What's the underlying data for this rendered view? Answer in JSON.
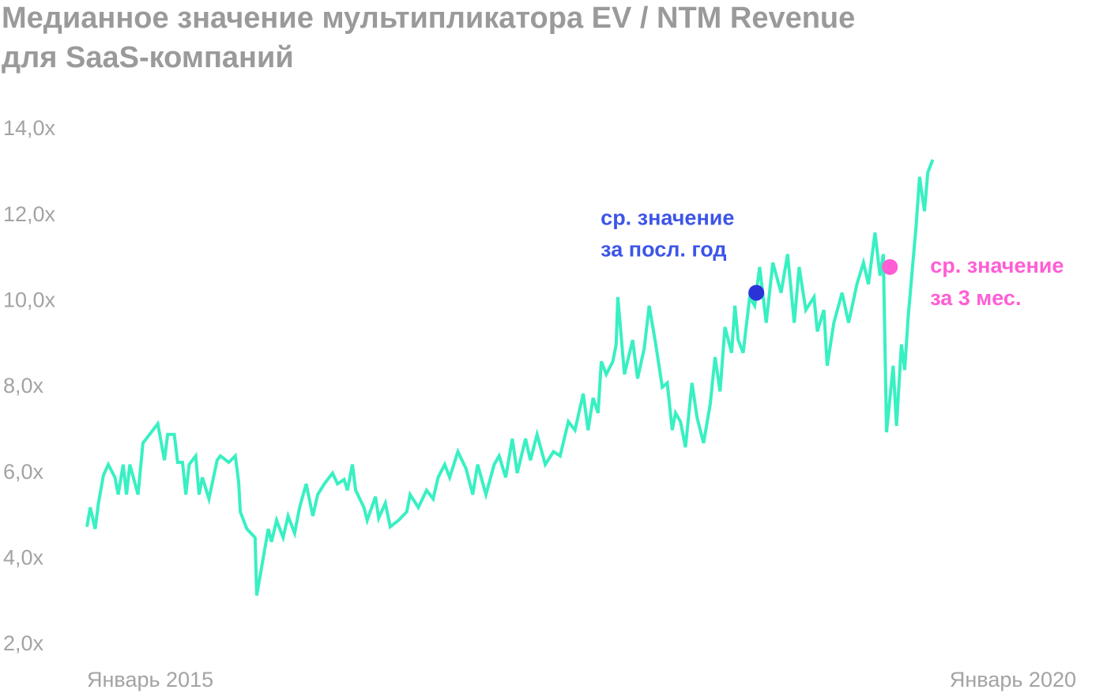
{
  "chart_data": {
    "type": "line",
    "title": [
      "Медианное значение мультипликатора EV / NTM Revenue",
      "для SaaS-компаний"
    ],
    "x": [
      0,
      0.2,
      0.5,
      0.7,
      1.0,
      1.3,
      1.7,
      1.9,
      2.2,
      2.4,
      2.6,
      3.1,
      3.4,
      3.8,
      4.3,
      4.7,
      4.9,
      5.3,
      5.5,
      5.8,
      6.0,
      6.2,
      6.6,
      6.8,
      7.0,
      7.4,
      7.9,
      8.1,
      8.6,
      9.0,
      9.2,
      9.3,
      9.7,
      10.2,
      10.3,
      11.0,
      11.2,
      11.5,
      11.9,
      12.2,
      12.6,
      12.9,
      13.3,
      13.7,
      14.0,
      14.4,
      14.9,
      15.2,
      15.6,
      15.8,
      16.1,
      16.3,
      16.8,
      17.0,
      17.5,
      17.7,
      18.1,
      18.4,
      18.9,
      19.4,
      19.6,
      20.1,
      20.6,
      21.0,
      21.3,
      21.7,
      22.0,
      22.5,
      23.0,
      23.4,
      23.7,
      24.2,
      24.7,
      25.0,
      25.4,
      25.8,
      26.1,
      26.6,
      26.9,
      27.3,
      27.8,
      28.3,
      28.7,
      29.2,
      29.6,
      30.1,
      30.4,
      30.7,
      31.0,
      31.2,
      31.5,
      31.9,
      32.1,
      32.2,
      32.6,
      33.1,
      33.4,
      33.8,
      34.1,
      34.5,
      34.9,
      35.2,
      35.5,
      35.7,
      36.0,
      36.3,
      36.7,
      37.0,
      37.4,
      37.8,
      38.1,
      38.4,
      38.7,
      39.1,
      39.3,
      39.5,
      39.8,
      40.2,
      40.5,
      40.8,
      41.2,
      41.6,
      42.1,
      42.5,
      42.9,
      43.2,
      43.6,
      44.1,
      44.3,
      44.7,
      44.9,
      45.3,
      45.8,
      46.2,
      46.7,
      47.1,
      47.4,
      47.8,
      48.1,
      48.3,
      48.5,
      48.9,
      49.1,
      49.4,
      49.6,
      49.8,
      50.3,
      50.5,
      50.8,
      51.0,
      51.3
    ],
    "series": [
      {
        "color": "#38f0c2",
        "values": [
          4.75,
          5.2,
          4.7,
          5.3,
          5.95,
          6.2,
          5.9,
          5.5,
          6.2,
          5.5,
          6.2,
          5.5,
          6.7,
          6.9,
          7.15,
          6.3,
          6.9,
          6.9,
          6.25,
          6.25,
          5.5,
          6.2,
          6.4,
          5.5,
          5.9,
          5.4,
          6.3,
          6.4,
          6.25,
          6.4,
          5.8,
          5.1,
          4.7,
          4.5,
          3.15,
          4.7,
          4.4,
          4.9,
          4.5,
          5.0,
          4.6,
          5.2,
          5.75,
          5.0,
          5.5,
          5.75,
          6.0,
          5.75,
          5.85,
          5.6,
          6.2,
          5.6,
          5.2,
          4.9,
          5.45,
          4.95,
          5.3,
          4.75,
          4.9,
          5.1,
          5.5,
          5.2,
          5.6,
          5.4,
          5.9,
          6.2,
          5.9,
          6.5,
          6.1,
          5.5,
          6.2,
          5.5,
          6.2,
          6.4,
          5.9,
          6.8,
          6.0,
          6.8,
          6.3,
          6.9,
          6.2,
          6.5,
          6.4,
          7.2,
          7.0,
          7.85,
          7.0,
          7.75,
          7.4,
          8.6,
          8.3,
          8.6,
          9.0,
          10.1,
          8.3,
          9.1,
          8.2,
          8.9,
          9.9,
          9.0,
          8.0,
          8.1,
          7.0,
          7.4,
          7.2,
          6.6,
          8.1,
          7.3,
          6.7,
          7.6,
          8.7,
          7.9,
          9.4,
          8.8,
          9.9,
          9.1,
          8.8,
          10.1,
          9.9,
          10.8,
          9.5,
          10.9,
          10.2,
          11.1,
          9.5,
          10.8,
          9.8,
          10.1,
          9.3,
          9.8,
          8.5,
          9.5,
          10.2,
          9.5,
          10.4,
          10.9,
          10.4,
          11.6,
          10.6,
          11.1,
          6.95,
          8.5,
          7.1,
          9.0,
          8.4,
          9.6,
          11.8,
          12.9,
          12.1,
          13.0,
          13.3
        ]
      }
    ],
    "xlim": [
      0,
      60
    ],
    "xticks": [
      {
        "value": 0,
        "label": "Январь 2015"
      },
      {
        "value": 60,
        "label": "Январь 2020"
      }
    ],
    "ylim": [
      2,
      14
    ],
    "yticks": [
      {
        "value": 2,
        "label": "2,0x"
      },
      {
        "value": 4,
        "label": "4,0x"
      },
      {
        "value": 6,
        "label": "6,0x"
      },
      {
        "value": 8,
        "label": "8,0x"
      },
      {
        "value": 10,
        "label": "10,0x"
      },
      {
        "value": 12,
        "label": "12,0x"
      },
      {
        "value": 14,
        "label": "14,0x"
      }
    ],
    "grid": false,
    "annotations": [
      {
        "text": [
          "ср. значение",
          "за посл. год"
        ],
        "x": 40.6,
        "y": 10.2,
        "color": "#2b33d8",
        "text_color": "#3d55e8",
        "side": "above-left"
      },
      {
        "text": [
          "ср. значение",
          "за 3 мес."
        ],
        "x": 48.7,
        "y": 10.8,
        "color": "#ff5ed4",
        "text_color": "#ff5ed4",
        "side": "right"
      }
    ]
  }
}
